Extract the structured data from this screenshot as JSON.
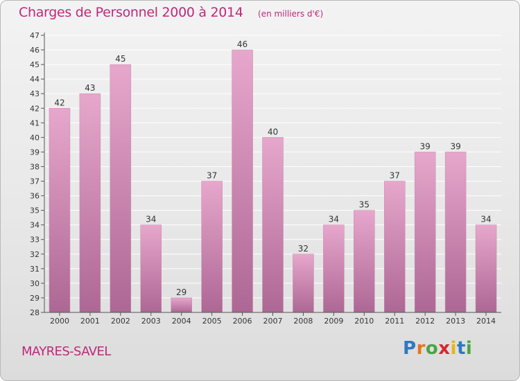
{
  "title": "Charges de Personnel 2000 à 2014",
  "subtitle": "(en milliers d'€)",
  "commune": "MAYRES-SAVEL",
  "logo": {
    "text": "Proxiti",
    "letters": [
      {
        "ch": "P",
        "color": "#2f78c4"
      },
      {
        "ch": "r",
        "color": "#e8731a"
      },
      {
        "ch": "o",
        "color": "#49a542"
      },
      {
        "ch": "x",
        "color": "#d8262e"
      },
      {
        "ch": "i",
        "color": "#e8b416"
      },
      {
        "ch": "t",
        "color": "#2f78c4"
      },
      {
        "ch": "i",
        "color": "#49a542"
      }
    ]
  },
  "colors": {
    "accent": "#c0277a",
    "bar_top": "#e7a7cc",
    "bar_bottom": "#ad6794",
    "grid": "#ffffff",
    "axis": "#555555"
  },
  "chart_data": {
    "type": "bar",
    "categories": [
      "2000",
      "2001",
      "2002",
      "2003",
      "2004",
      "2005",
      "2006",
      "2007",
      "2008",
      "2009",
      "2010",
      "2011",
      "2012",
      "2013",
      "2014"
    ],
    "values": [
      42,
      43,
      45,
      34,
      29,
      37,
      46,
      40,
      32,
      34,
      35,
      37,
      39,
      39,
      34
    ],
    "ylim": [
      28,
      47
    ],
    "yticks": [
      28,
      29,
      30,
      31,
      32,
      33,
      34,
      35,
      36,
      37,
      38,
      39,
      40,
      41,
      42,
      43,
      44,
      45,
      46,
      47
    ],
    "grid": true,
    "data_labels": true
  }
}
